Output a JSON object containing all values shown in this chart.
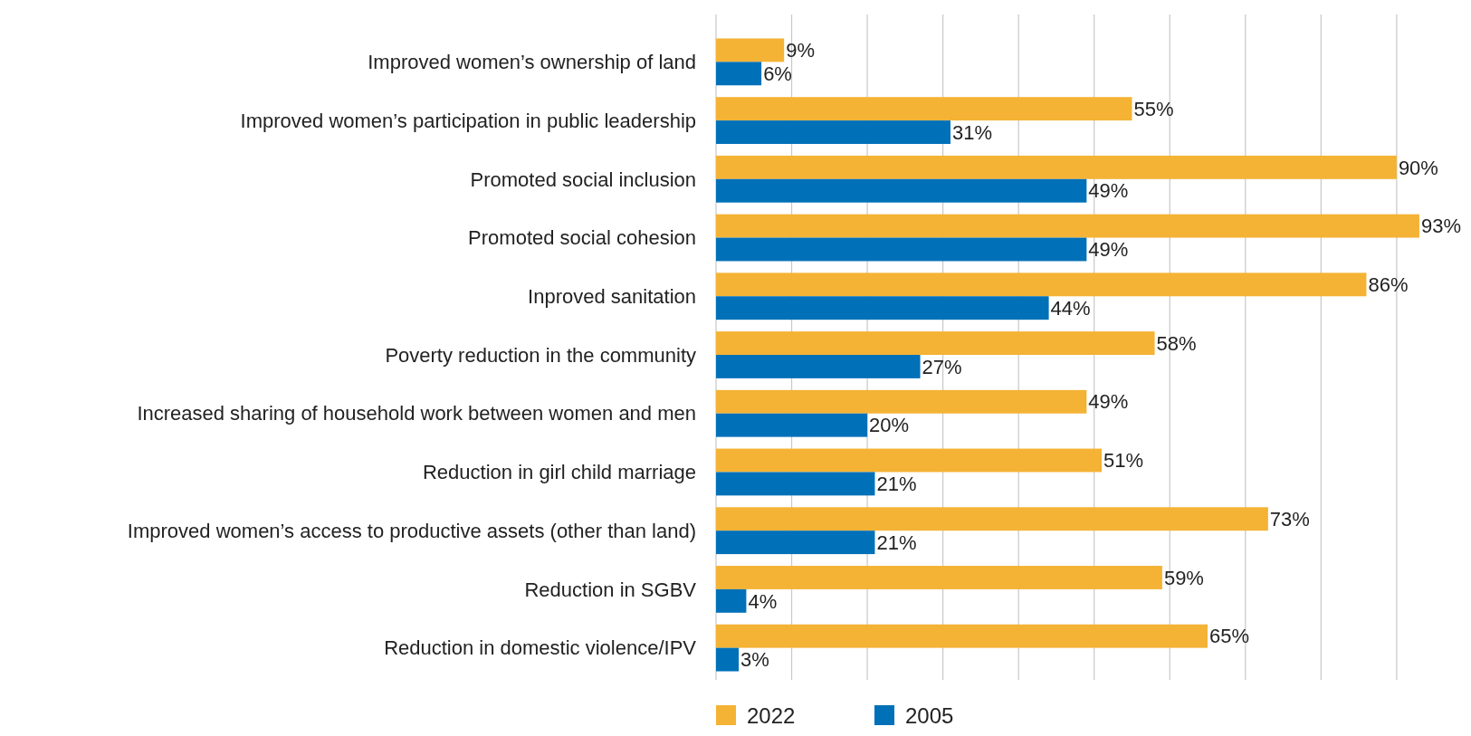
{
  "chart_data": {
    "type": "bar",
    "orientation": "horizontal",
    "categories": [
      "Improved women’s ownership of land",
      "Improved women’s participation in public leadership",
      "Promoted social inclusion",
      "Promoted social cohesion",
      "Inproved sanitation",
      "Poverty reduction in the community",
      "Increased sharing of household work between women and men",
      "Reduction in girl child marriage",
      "Improved women’s access to productive assets (other than land)",
      "Reduction in SGBV",
      "Reduction in domestic violence/IPV"
    ],
    "series": [
      {
        "name": "2022",
        "color": "#f4b335",
        "values": [
          9,
          55,
          90,
          93,
          86,
          58,
          49,
          51,
          73,
          59,
          65
        ],
        "value_labels": [
          "9%",
          "55%",
          "90%",
          "93%",
          "86%",
          "58%",
          "49%",
          "51%",
          "73%",
          "59%",
          "65%"
        ]
      },
      {
        "name": "2005",
        "color": "#0070b8",
        "values": [
          6,
          31,
          49,
          49,
          44,
          27,
          20,
          21,
          21,
          4,
          3
        ],
        "value_labels": [
          "6%",
          "31%",
          "49%",
          "49%",
          "44%",
          "27%",
          "20%",
          "21%",
          "21%",
          "4%",
          "3%"
        ]
      }
    ],
    "xticks": [
      {
        "value": 0,
        "label": null
      },
      {
        "value": 10,
        "label": null
      },
      {
        "value": 20,
        "label": null
      },
      {
        "value": 30,
        "label": null
      },
      {
        "value": 40,
        "label": null
      },
      {
        "value": 50,
        "label": null
      },
      {
        "value": 60,
        "label": null
      },
      {
        "value": 70,
        "label": null
      },
      {
        "value": 80,
        "label": null
      },
      {
        "value": 90,
        "label": null
      }
    ],
    "tick_labels": "y",
    "grid": "x",
    "legend": "bottom"
  }
}
